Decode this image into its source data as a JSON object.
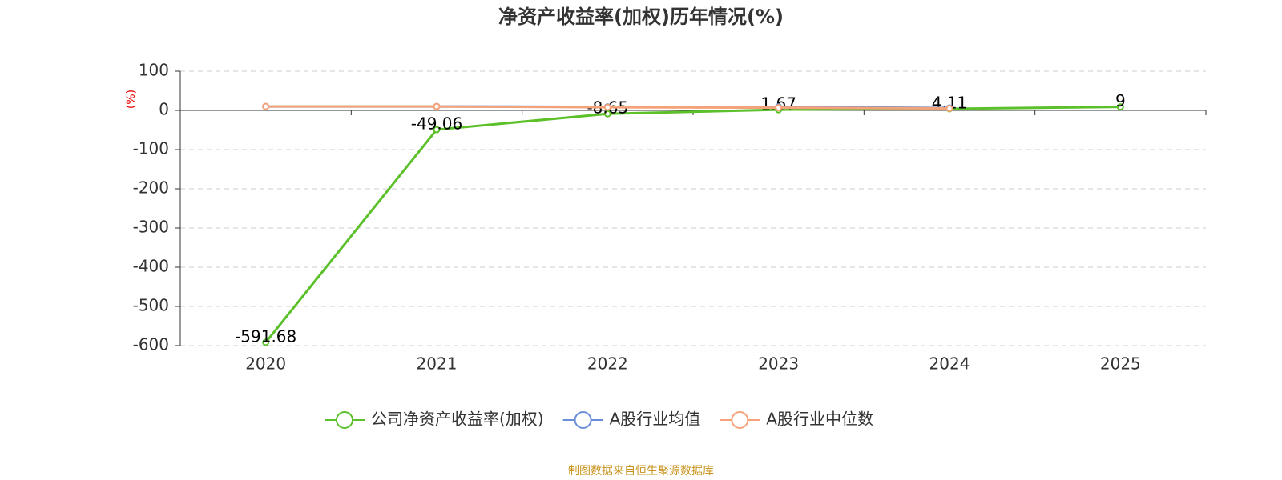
{
  "chart_data": {
    "type": "line",
    "title": "净资产收益率(加权)历年情况(%)",
    "y_label": "(%)",
    "source": "制图数据来自恒生聚源数据库",
    "categories": [
      "2020",
      "2021",
      "2022",
      "2023",
      "2024",
      "2025"
    ],
    "series": [
      {
        "name": "公司净资产收益率(加权)",
        "color": "#5cc02a",
        "values": [
          -591.68,
          -49.06,
          -8.65,
          1.67,
          4.11,
          9
        ],
        "show_labels": true
      },
      {
        "name": "A股行业均值",
        "color": "#6a8fd8",
        "values": [
          10,
          10,
          9,
          9,
          6,
          null
        ],
        "show_labels": false
      },
      {
        "name": "A股行业中位数",
        "color": "#f4a27a",
        "values": [
          10,
          10,
          8,
          7,
          5,
          null
        ],
        "show_labels": false
      }
    ],
    "ylim": [
      -600,
      100
    ],
    "yticks": [
      -600,
      -500,
      -400,
      -300,
      -200,
      -100,
      0,
      100
    ],
    "grid": true
  }
}
